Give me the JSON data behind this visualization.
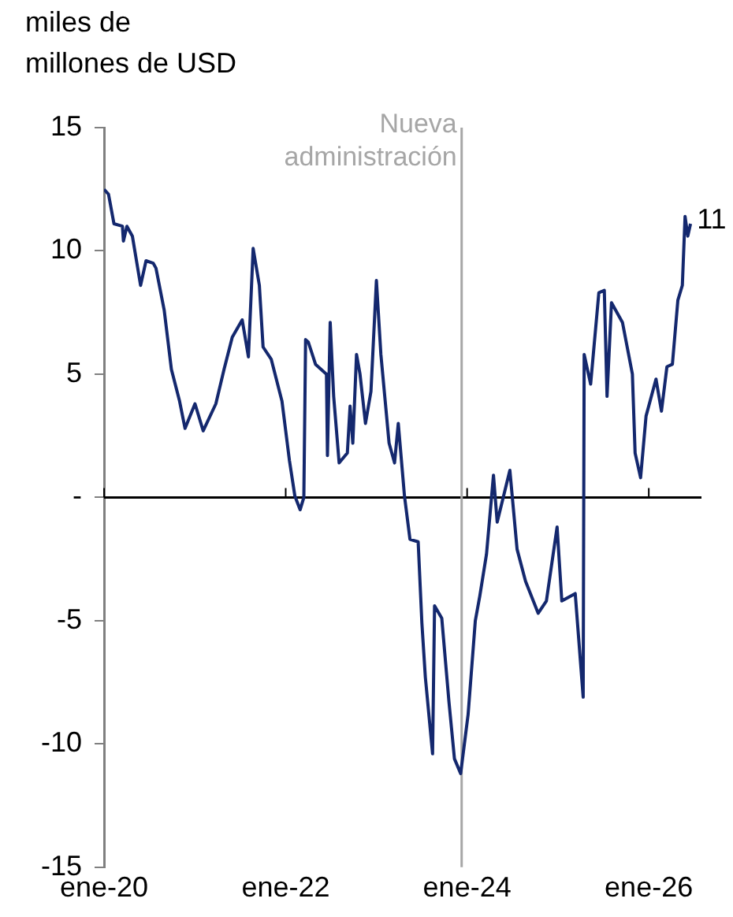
{
  "chart_data": {
    "type": "line",
    "ylabel": "miles de\nmillones de USD",
    "x": [
      "2020-01-01",
      "2020-01-19",
      "2020-02-10",
      "2020-03-15",
      "2020-03-19",
      "2020-04-02",
      "2020-04-24",
      "2020-05-27",
      "2020-06-18",
      "2020-07-17",
      "2020-07-28",
      "2020-08-30",
      "2020-09-28",
      "2020-10-31",
      "2020-11-22",
      "2021-01-01",
      "2021-02-03",
      "2021-03-26",
      "2021-04-28",
      "2021-05-31",
      "2021-07-10",
      "2021-08-04",
      "2021-08-23",
      "2021-09-17",
      "2021-10-02",
      "2021-11-04",
      "2021-12-17",
      "2022-01-16",
      "2022-02-07",
      "2022-02-28",
      "2022-03-15",
      "2022-03-22",
      "2022-04-02",
      "2022-05-01",
      "2022-06-14",
      "2022-06-18",
      "2022-06-29",
      "2022-07-13",
      "2022-08-04",
      "2022-09-06",
      "2022-09-17",
      "2022-09-28",
      "2022-10-13",
      "2022-10-27",
      "2022-11-18",
      "2022-12-10",
      "2023-01-01",
      "2023-01-19",
      "2023-02-21",
      "2023-03-15",
      "2023-03-30",
      "2023-04-24",
      "2023-05-16",
      "2023-06-18",
      "2023-07-03",
      "2023-07-17",
      "2023-08-15",
      "2023-08-23",
      "2023-09-21",
      "2023-10-20",
      "2023-11-11",
      "2023-12-06",
      "2024-01-05",
      "2024-02-03",
      "2024-02-21",
      "2024-03-19",
      "2024-04-16",
      "2024-05-01",
      "2024-06-21",
      "2024-07-20",
      "2024-08-23",
      "2024-10-13",
      "2024-11-15",
      "2024-12-28",
      "2025-01-16",
      "2025-03-11",
      "2025-04-12",
      "2025-04-16",
      "2025-05-12",
      "2025-06-14",
      "2025-07-06",
      "2025-07-17",
      "2025-08-04",
      "2025-09-17",
      "2025-10-27",
      "2025-11-07",
      "2025-11-29",
      "2025-12-21",
      "2026-01-30",
      "2026-02-21",
      "2026-03-15",
      "2026-04-06",
      "2026-04-28",
      "2026-05-16",
      "2026-05-27",
      "2026-06-07",
      "2026-06-18"
    ],
    "series": [
      {
        "color": "#14286e",
        "values": [
          12.5,
          12.3,
          11.1,
          11.0,
          10.4,
          11.0,
          10.6,
          8.6,
          9.6,
          9.5,
          9.3,
          7.6,
          5.2,
          3.9,
          2.8,
          3.8,
          2.7,
          3.8,
          5.2,
          6.5,
          7.2,
          5.7,
          10.1,
          8.6,
          6.1,
          5.6,
          3.9,
          1.5,
          0.05,
          -0.5,
          0.0,
          6.4,
          6.3,
          5.4,
          5.0,
          1.7,
          7.1,
          4.1,
          1.4,
          1.8,
          3.7,
          2.2,
          5.8,
          5.0,
          3.0,
          4.3,
          8.8,
          5.8,
          2.2,
          1.4,
          3.0,
          0.05,
          -1.7,
          -1.8,
          -5.1,
          -7.3,
          -10.4,
          -4.4,
          -4.9,
          -8.3,
          -10.6,
          -11.2,
          -8.8,
          -5.0,
          -4.0,
          -2.3,
          0.9,
          -1.0,
          1.1,
          -2.1,
          -3.4,
          -4.7,
          -4.2,
          -1.2,
          -4.2,
          -3.9,
          -8.1,
          5.8,
          4.6,
          8.3,
          8.4,
          4.1,
          7.9,
          7.1,
          5.0,
          1.8,
          0.8,
          3.3,
          4.8,
          3.5,
          5.3,
          5.4,
          8.0,
          8.6,
          11.4,
          10.6,
          11.1
        ]
      }
    ],
    "xlim": [
      "2020-01-01",
      "2026-08-01"
    ],
    "xticks": [
      {
        "value": "2020-01",
        "label": "ene-20"
      },
      {
        "value": "2022-01",
        "label": "ene-22"
      },
      {
        "value": "2024-01",
        "label": "ene-24"
      },
      {
        "value": "2026-01",
        "label": "ene-26"
      }
    ],
    "ylim": [
      -15,
      15
    ],
    "yticks": [
      15,
      10,
      5,
      {
        "value": 0,
        "label": "-"
      },
      -5,
      -10,
      -15
    ],
    "ref_lines": [
      {
        "axis": "y",
        "value": 0,
        "color": "#000000"
      },
      {
        "axis": "x",
        "value": "2023-12-10",
        "label": "Nueva\nadministración",
        "color": "#a6a6a6"
      }
    ],
    "annotations": [
      {
        "text": "11",
        "x": "2026-06-18",
        "y": 11.1
      }
    ],
    "grid": false,
    "legend": false,
    "marker": "none",
    "line_style": "solid"
  }
}
